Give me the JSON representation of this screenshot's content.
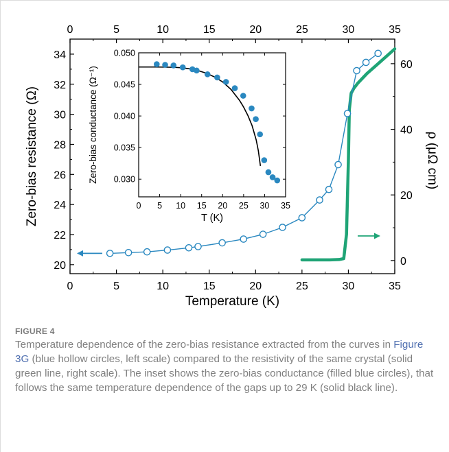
{
  "chart_data": [
    {
      "type": "scatter",
      "xlabel": "Temperature (K)",
      "ylabel": "Zero-bias resistance (Ω)",
      "y2label": "ρ (μΩ cm)",
      "xlim": [
        0,
        35
      ],
      "ylim": [
        19.4,
        35
      ],
      "y2lim": [
        -4,
        67.5
      ],
      "xticks": [
        0,
        5,
        10,
        15,
        20,
        25,
        30,
        35
      ],
      "xticks_top": [
        0,
        5,
        10,
        15,
        20,
        25,
        30,
        35
      ],
      "yticks": [
        20,
        22,
        24,
        26,
        28,
        30,
        32,
        34
      ],
      "y2ticks": [
        0,
        20,
        40,
        60
      ],
      "grid": false,
      "series": [
        {
          "marker": "hollow-circle-line",
          "color": "#2a88c0",
          "axis": "left",
          "x": [
            4.3,
            6.3,
            8.3,
            10.5,
            12.8,
            13.8,
            16.4,
            18.7,
            20.8,
            22.9,
            25,
            26.9,
            27.9,
            28.9,
            29.9,
            30.9,
            31.9,
            33.2
          ],
          "y": [
            20.75,
            20.8,
            20.85,
            20.97,
            21.12,
            21.2,
            21.45,
            21.7,
            22.02,
            22.48,
            23.12,
            24.3,
            25.0,
            26.65,
            30.05,
            32.9,
            33.45,
            34.05
          ]
        },
        {
          "marker": "line",
          "color": "#1fa476",
          "axis": "right",
          "x": [
            25,
            26,
            27,
            28,
            29,
            29.5,
            29.8,
            30.0,
            30.1,
            30.3,
            30.6,
            31,
            32,
            33,
            34,
            35
          ],
          "y": [
            0.2,
            0.2,
            0.2,
            0.2,
            0.3,
            0.6,
            8,
            30,
            46,
            51,
            52.5,
            54,
            57,
            59.5,
            62,
            64.5
          ]
        }
      ],
      "arrows": [
        {
          "points_to": "left"
        },
        {
          "points_to": "right"
        }
      ]
    },
    {
      "type": "scatter",
      "xlabel": "T (K)",
      "ylabel": "Zero-bias conductance (Ω⁻¹)",
      "xlim": [
        0,
        35
      ],
      "ylim": [
        0.0272,
        0.05
      ],
      "xticks": [
        0,
        5,
        10,
        15,
        20,
        25,
        30,
        35
      ],
      "yticks": [
        0.03,
        0.035,
        0.04,
        0.045,
        0.05
      ],
      "ytick_labels": [
        "0.030",
        "0.035",
        "0.040",
        "0.045",
        "0.050"
      ],
      "grid": false,
      "series": [
        {
          "marker": "filled-circle",
          "color": "#2a88c0",
          "x": [
            4.3,
            6.3,
            8.3,
            10.5,
            12.8,
            13.8,
            16.4,
            18.7,
            20.8,
            22.9,
            24.9,
            26.9,
            27.9,
            28.9,
            29.9,
            30.9,
            31.9,
            33.0
          ],
          "y": [
            0.0482,
            0.0481,
            0.048,
            0.0477,
            0.0474,
            0.0472,
            0.0466,
            0.0461,
            0.0454,
            0.0444,
            0.0432,
            0.0412,
            0.0395,
            0.0371,
            0.033,
            0.0311,
            0.0303,
            0.0298
          ]
        },
        {
          "marker": "line",
          "color": "#000000",
          "x": [
            0,
            2,
            4,
            6,
            8,
            10,
            12,
            14,
            16,
            18,
            20,
            22,
            24,
            25,
            26,
            27,
            28,
            28.5,
            29
          ],
          "y": [
            0.04775,
            0.04775,
            0.04775,
            0.04774,
            0.04771,
            0.04764,
            0.04748,
            0.04722,
            0.0468,
            0.0462,
            0.0454,
            0.0442,
            0.0425,
            0.0414,
            0.0401,
            0.0385,
            0.0362,
            0.0345,
            0.0321
          ]
        }
      ]
    }
  ],
  "figure": {
    "label": "FIGURE 4",
    "caption_parts": [
      "Temperature dependence of the zero-bias resistance extracted from the curves in ",
      "Figure 3G",
      " (blue hollow circles, left scale) compared to the resistivity of the same crystal (solid green line, right scale). The inset shows the zero-bias conductance (filled blue circles), that follows the same temperature dependence of the gaps up to 29 K (solid black line)."
    ]
  }
}
